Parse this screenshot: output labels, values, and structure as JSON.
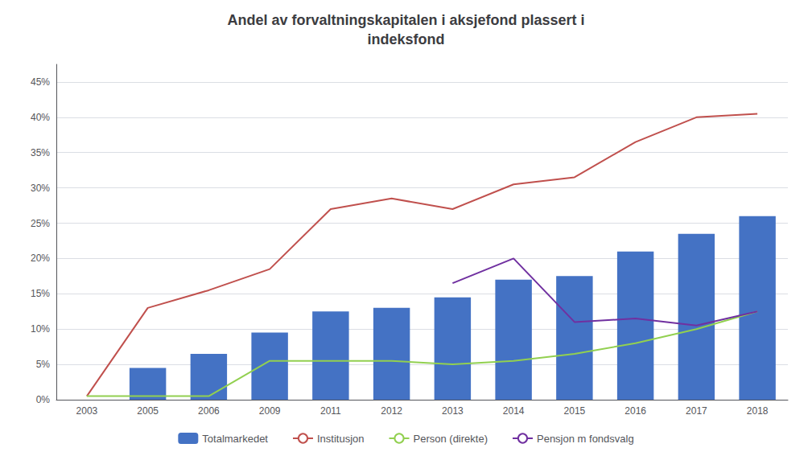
{
  "chart_data": {
    "type": "bar",
    "title": "Andel av forvaltningskapitalen i aksjefond plassert i\nindeksfond",
    "categories": [
      "2003",
      "2005",
      "2006",
      "2009",
      "2011",
      "2012",
      "2013",
      "2014",
      "2015",
      "2016",
      "2017",
      "2018"
    ],
    "series": [
      {
        "name": "Totalmarkedet",
        "type": "bar",
        "color": "#4472C4",
        "values": [
          null,
          0.045,
          0.065,
          0.095,
          0.125,
          0.13,
          0.145,
          0.17,
          0.175,
          0.21,
          0.235,
          0.26
        ]
      },
      {
        "name": "Institusjon",
        "type": "line",
        "color": "#C0504D",
        "values": [
          0.005,
          0.13,
          0.155,
          0.185,
          0.27,
          0.285,
          0.27,
          0.305,
          0.315,
          0.365,
          0.4,
          0.405
        ]
      },
      {
        "name": "Person (direkte)",
        "type": "line",
        "color": "#92D050",
        "values": [
          0.005,
          0.005,
          0.005,
          0.055,
          0.055,
          0.055,
          0.05,
          0.055,
          0.065,
          0.08,
          0.1,
          0.125
        ]
      },
      {
        "name": "Pensjon m fondsvalg",
        "type": "line",
        "color": "#7030A0",
        "values": [
          null,
          null,
          null,
          null,
          null,
          null,
          0.165,
          0.2,
          0.11,
          0.115,
          0.105,
          0.125
        ]
      }
    ],
    "ylim": [
      0,
      0.475
    ],
    "yticks": [
      {
        "value": 0,
        "label": "0%"
      },
      {
        "value": 0.05,
        "label": "5%"
      },
      {
        "value": 0.1,
        "label": "10%"
      },
      {
        "value": 0.15,
        "label": "15%"
      },
      {
        "value": 0.2,
        "label": "20%"
      },
      {
        "value": 0.25,
        "label": "25%"
      },
      {
        "value": 0.3,
        "label": "30%"
      },
      {
        "value": 0.35,
        "label": "35%"
      },
      {
        "value": 0.4,
        "label": "40%"
      },
      {
        "value": 0.45,
        "label": "45%"
      }
    ],
    "grid": true,
    "legend": "bottom"
  }
}
